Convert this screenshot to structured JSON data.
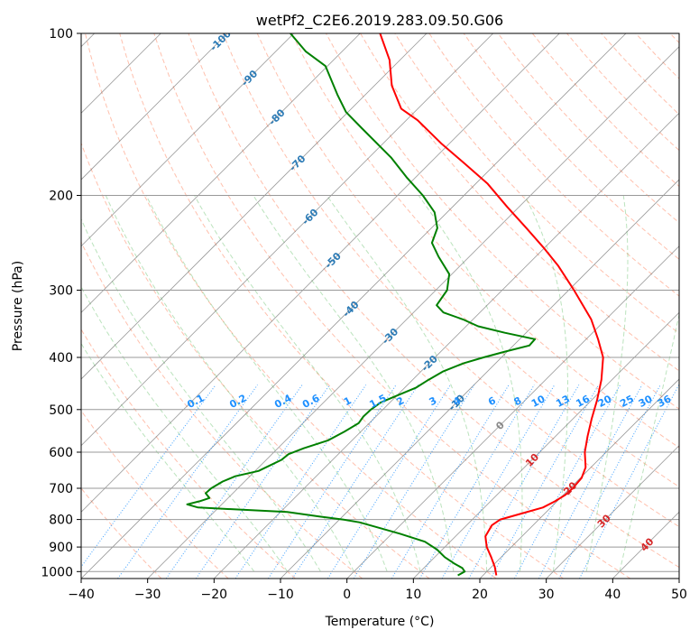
{
  "chart_data": {
    "type": "line",
    "title": "wetPf2_C2E6.2019.283.09.50.G06",
    "xlabel": "Temperature (°C)",
    "ylabel": "Pressure (hPa)",
    "xlim": [
      -40,
      50
    ],
    "ylim": [
      1030,
      100
    ],
    "y_scale": "log",
    "skew": "skew-T log-P diagram",
    "x_ticks": [
      -40,
      -30,
      -20,
      -10,
      0,
      10,
      20,
      30,
      40,
      50
    ],
    "x_tick_labels": [
      "−40",
      "−30",
      "−20",
      "−10",
      "0",
      "10",
      "20",
      "30",
      "40",
      "50"
    ],
    "y_ticks": [
      100,
      200,
      300,
      400,
      500,
      600,
      700,
      800,
      900,
      1000
    ],
    "y_tick_labels": [
      "100",
      "200",
      "300",
      "400",
      "500",
      "600",
      "700",
      "800",
      "900",
      "1000"
    ],
    "grid": true,
    "legend": "none",
    "series": [
      {
        "color": "#ff0000",
        "points": [
          [
            1016,
            22
          ],
          [
            980,
            20.5
          ],
          [
            940,
            18.5
          ],
          [
            900,
            16.3
          ],
          [
            860,
            14.5
          ],
          [
            820,
            13.8
          ],
          [
            800,
            14.2
          ],
          [
            780,
            16.5
          ],
          [
            760,
            18.8
          ],
          [
            740,
            19.7
          ],
          [
            720,
            20.3
          ],
          [
            700,
            20.4
          ],
          [
            670,
            20.2
          ],
          [
            640,
            19.2
          ],
          [
            600,
            16.8
          ],
          [
            560,
            14.8
          ],
          [
            520,
            12.8
          ],
          [
            480,
            10.8
          ],
          [
            440,
            8.4
          ],
          [
            400,
            5.3
          ],
          [
            370,
            1.8
          ],
          [
            340,
            -2.2
          ],
          [
            300,
            -9.2
          ],
          [
            270,
            -15.3
          ],
          [
            250,
            -20.2
          ],
          [
            230,
            -25.7
          ],
          [
            210,
            -31.8
          ],
          [
            190,
            -38.3
          ],
          [
            175,
            -44.5
          ],
          [
            160,
            -51.3
          ],
          [
            145,
            -58.3
          ],
          [
            138,
            -62.5
          ],
          [
            125,
            -67.4
          ],
          [
            112,
            -71.6
          ],
          [
            100,
            -77
          ]
        ]
      },
      {
        "color": "#008000",
        "points": [
          [
            1016,
            16.2
          ],
          [
            1000,
            16.7
          ],
          [
            985,
            15.8
          ],
          [
            965,
            13.8
          ],
          [
            940,
            11.5
          ],
          [
            910,
            9.2
          ],
          [
            880,
            6.2
          ],
          [
            850,
            1.2
          ],
          [
            810,
            -6.5
          ],
          [
            800,
            -9.5
          ],
          [
            790,
            -13.5
          ],
          [
            775,
            -19
          ],
          [
            760,
            -33.1
          ],
          [
            750,
            -35.2
          ],
          [
            740,
            -33.8
          ],
          [
            730,
            -32.8
          ],
          [
            715,
            -34.1
          ],
          [
            700,
            -34
          ],
          [
            680,
            -33.3
          ],
          [
            665,
            -32.2
          ],
          [
            650,
            -29.5
          ],
          [
            635,
            -28.6
          ],
          [
            620,
            -27.7
          ],
          [
            605,
            -27.5
          ],
          [
            590,
            -26.1
          ],
          [
            570,
            -23.6
          ],
          [
            550,
            -22.5
          ],
          [
            530,
            -21.6
          ],
          [
            515,
            -21.9
          ],
          [
            500,
            -21.8
          ],
          [
            485,
            -21.4
          ],
          [
            470,
            -19.9
          ],
          [
            455,
            -18.3
          ],
          [
            440,
            -17.6
          ],
          [
            425,
            -16.7
          ],
          [
            410,
            -14.8
          ],
          [
            400,
            -12.7
          ],
          [
            390,
            -10.3
          ],
          [
            380,
            -7.6
          ],
          [
            370,
            -7.7
          ],
          [
            360,
            -13.2
          ],
          [
            350,
            -18.2
          ],
          [
            340,
            -21.5
          ],
          [
            330,
            -25.5
          ],
          [
            320,
            -27.6
          ],
          [
            300,
            -28.3
          ],
          [
            280,
            -30.4
          ],
          [
            260,
            -34.6
          ],
          [
            245,
            -37.7
          ],
          [
            230,
            -39.1
          ],
          [
            215,
            -41.9
          ],
          [
            200,
            -46.2
          ],
          [
            185,
            -51.4
          ],
          [
            170,
            -56.7
          ],
          [
            150,
            -65.5
          ],
          [
            140,
            -70.3
          ],
          [
            130,
            -74.2
          ],
          [
            115,
            -80.3
          ],
          [
            108,
            -85.5
          ],
          [
            100,
            -90.5
          ]
        ]
      }
    ],
    "annotations": {
      "isotherm_labels": [
        "-100",
        "-90",
        "-80",
        "-70",
        "-60",
        "-50",
        "-40",
        "-30",
        "-20",
        "-10",
        "0",
        "10",
        "20",
        "30",
        "40"
      ],
      "mixing_ratio_labels": [
        "0.1",
        "0.2",
        "0.4",
        "0.6",
        "1",
        "1.5",
        "2",
        "3",
        "4",
        "6",
        "8",
        "10",
        "13",
        "16",
        "20",
        "25",
        "30",
        "36"
      ]
    }
  }
}
